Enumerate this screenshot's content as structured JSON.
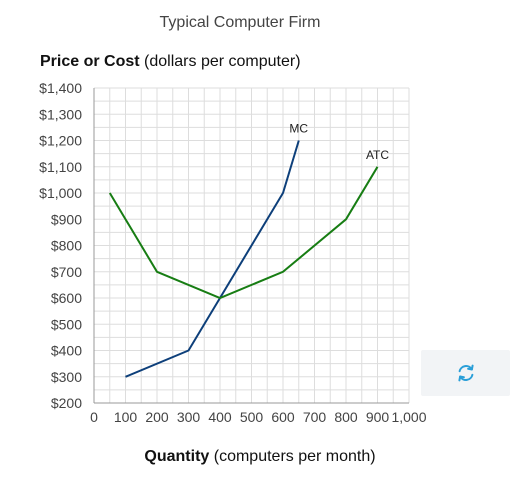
{
  "chart_title": "Typical Computer Firm",
  "y_axis_title": {
    "bold": "Price or Cost",
    "normal": " (dollars per computer)"
  },
  "x_axis_title": {
    "bold": "Quantity",
    "normal": " (computers per month)"
  },
  "reset_button": {
    "icon": "refresh-icon"
  },
  "colors": {
    "mc": "#0d3f7a",
    "atc": "#177d13",
    "grid": "#dddddd",
    "reset_icon": "#2a9fd8"
  },
  "chart_data": {
    "type": "line",
    "title": "Typical Computer Firm",
    "xlabel": "Quantity (computers per month)",
    "ylabel": "Price or Cost (dollars per computer)",
    "xlim": [
      0,
      1000
    ],
    "ylim": [
      200,
      1400
    ],
    "grid": true,
    "x_ticks": [
      {
        "value": 0,
        "label": "0"
      },
      {
        "value": 100,
        "label": "100"
      },
      {
        "value": 200,
        "label": "200"
      },
      {
        "value": 300,
        "label": "300"
      },
      {
        "value": 400,
        "label": "400"
      },
      {
        "value": 500,
        "label": "500"
      },
      {
        "value": 600,
        "label": "600"
      },
      {
        "value": 700,
        "label": "700"
      },
      {
        "value": 800,
        "label": "800"
      },
      {
        "value": 900,
        "label": "900"
      },
      {
        "value": 1000,
        "label": "1,000"
      }
    ],
    "y_ticks": [
      {
        "value": 200,
        "label": "$200"
      },
      {
        "value": 300,
        "label": "$300"
      },
      {
        "value": 400,
        "label": "$400"
      },
      {
        "value": 500,
        "label": "$500"
      },
      {
        "value": 600,
        "label": "$600"
      },
      {
        "value": 700,
        "label": "$700"
      },
      {
        "value": 800,
        "label": "$800"
      },
      {
        "value": 900,
        "label": "$900"
      },
      {
        "value": 1000,
        "label": "$1,000"
      },
      {
        "value": 1100,
        "label": "$1,100"
      },
      {
        "value": 1200,
        "label": "$1,200"
      },
      {
        "value": 1300,
        "label": "$1,300"
      },
      {
        "value": 1400,
        "label": "$1,400"
      }
    ],
    "series": [
      {
        "name": "MC",
        "color": "#0d3f7a",
        "points": [
          {
            "x": 100,
            "y": 300
          },
          {
            "x": 300,
            "y": 400
          },
          {
            "x": 600,
            "y": 1000
          },
          {
            "x": 650,
            "y": 1200
          }
        ]
      },
      {
        "name": "ATC",
        "color": "#177d13",
        "points": [
          {
            "x": 50,
            "y": 1000
          },
          {
            "x": 200,
            "y": 700
          },
          {
            "x": 400,
            "y": 600
          },
          {
            "x": 600,
            "y": 700
          },
          {
            "x": 800,
            "y": 900
          },
          {
            "x": 900,
            "y": 1100
          }
        ]
      }
    ]
  }
}
